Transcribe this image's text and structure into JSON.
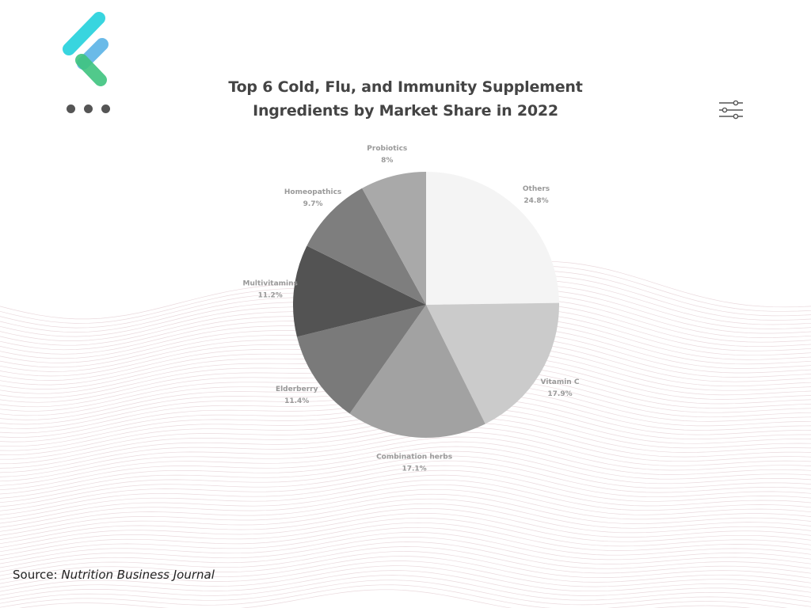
{
  "header": {
    "title_line1": "Top 6 Cold, Flu, and Immunity Supplement",
    "title_line2": "Ingredients by Market Share in 2022"
  },
  "source": {
    "prefix": "Source:",
    "name": "Nutrition Business Journal"
  },
  "icons": {
    "logo": "brand-logo-icon",
    "more": "more-dots-icon",
    "settings": "sliders-icon"
  },
  "colors": {
    "logo_cyan": "#2ed3de",
    "logo_blue": "#5ab3e6",
    "logo_green": "#3fc47f",
    "wave_lines": "#ead9dd",
    "label_text": "#999999"
  },
  "chart_data": {
    "type": "pie",
    "title": "Top 6 Cold, Flu, and Immunity Supplement Ingredients by Market Share in 2022",
    "start": "12 o'clock, clockwise",
    "slices": [
      {
        "label": "Others",
        "value": 24.8,
        "display": "24.8%",
        "color": "#f4f4f4"
      },
      {
        "label": "Vitamin C",
        "value": 17.9,
        "display": "17.9%",
        "color": "#cbcbcb"
      },
      {
        "label": "Combination herbs",
        "value": 17.1,
        "display": "17.1%",
        "color": "#a2a2a2"
      },
      {
        "label": "Elderberry",
        "value": 11.4,
        "display": "11.4%",
        "color": "#7a7a7a"
      },
      {
        "label": "Multivitamins",
        "value": 11.2,
        "display": "11.2%",
        "color": "#535353"
      },
      {
        "label": "Homeopathics",
        "value": 9.7,
        "display": "9.7%",
        "color": "#7e7e7e"
      },
      {
        "label": "Probiotics",
        "value": 8,
        "display": "8%",
        "color": "#a9a9a9"
      }
    ]
  }
}
